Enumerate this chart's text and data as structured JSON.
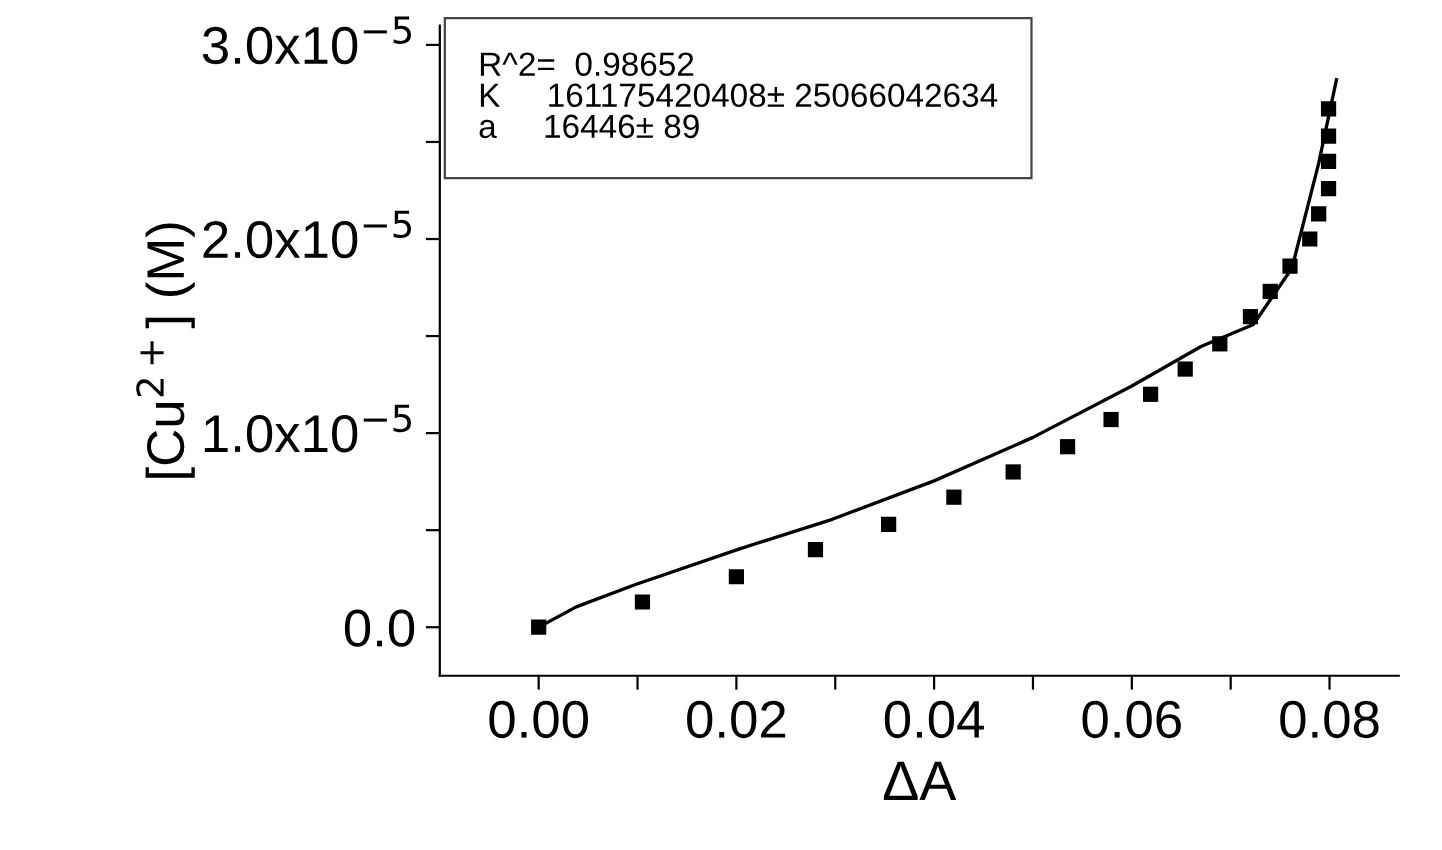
{
  "chart_data": {
    "type": "scatter",
    "xlabel": "ΔA",
    "ylabel": "[Cu$^{2+}$] (M)",
    "annotations": [
      "R^2=  0.98652\nK     161175420408± 25066042634\na     16446± 89"
    ],
    "series": [
      {
        "color": "#000000",
        "marker": "square",
        "x": [
          0.0,
          0.0105,
          0.02,
          0.028,
          0.0354,
          0.042,
          0.048,
          0.0535,
          0.0579,
          0.0619,
          0.0654,
          0.0689,
          0.072,
          0.074,
          0.076,
          0.078,
          0.0789,
          0.0799,
          0.0799,
          0.0799,
          0.0799
        ],
        "values": [
          0.0,
          1.3e-06,
          2.6e-06,
          4e-06,
          5.3e-06,
          6.7e-06,
          8e-06,
          9.3e-06,
          1.07e-05,
          1.2e-05,
          1.33e-05,
          1.46e-05,
          1.6e-05,
          1.73e-05,
          1.86e-05,
          2e-05,
          2.13e-05,
          2.26e-05,
          2.4e-05,
          2.53e-05,
          2.67e-05
        ]
      },
      {
        "type": "line",
        "color": "#000000",
        "line_style": "solid",
        "x": [
          0.0,
          0.0038,
          0.0098,
          0.0201,
          0.0297,
          0.04,
          0.05,
          0.06,
          0.067,
          0.0723,
          0.0762,
          0.0789,
          0.0807
        ],
        "values": [
          0.0,
          1.05e-06,
          2.2e-06,
          4e-06,
          5.56e-06,
          7.54e-06,
          9.78e-06,
          1.243e-05,
          1.446e-05,
          1.56e-05,
          1.85e-05,
          2.39e-05,
          2.82e-05
        ]
      }
    ],
    "xlim": [
      -0.01,
      0.087
    ],
    "ylim": [
      -2.5e-06,
      3.1e-05
    ],
    "xticks": [
      {
        "value": 0.0,
        "label": "0.00"
      },
      {
        "value": 0.01,
        "label": null
      },
      {
        "value": 0.02,
        "label": "0.02"
      },
      {
        "value": 0.03,
        "label": null
      },
      {
        "value": 0.04,
        "label": "0.04"
      },
      {
        "value": 0.05,
        "label": null
      },
      {
        "value": 0.06,
        "label": "0.06"
      },
      {
        "value": 0.07,
        "label": null
      },
      {
        "value": 0.08,
        "label": "0.08"
      }
    ],
    "yticks": [
      {
        "value": 0.0,
        "label": "0.0"
      },
      {
        "value": 5e-06,
        "label": null
      },
      {
        "value": 1e-05,
        "label": "1.0x10$^{−5}$"
      },
      {
        "value": 1.5e-05,
        "label": null
      },
      {
        "value": 2e-05,
        "label": "2.0x10$^{−5}$"
      },
      {
        "value": 2.5e-05,
        "label": null
      },
      {
        "value": 3e-05,
        "label": "3.0x10$^{−5}$"
      }
    ],
    "grid": false,
    "legend": false
  }
}
